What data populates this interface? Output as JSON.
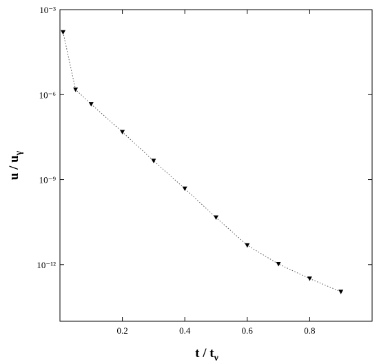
{
  "chart_data": {
    "type": "line",
    "xlabel": {
      "text": "t / t",
      "sub": "ν"
    },
    "ylabel": {
      "text": "u / u",
      "sub": "γ"
    },
    "x": [
      0.01,
      0.05,
      0.1,
      0.2,
      0.3,
      0.4,
      0.5,
      0.6,
      0.7,
      0.8,
      0.9
    ],
    "series": [
      {
        "color": "#000000",
        "values": [
          0.00016,
          1.5e-06,
          4.6e-07,
          4.8e-08,
          4.6e-09,
          4.8e-10,
          4.6e-11,
          4.8e-12,
          1.05e-12,
          3.2e-13,
          1.1e-13
        ]
      }
    ],
    "xlim": [
      0,
      1
    ],
    "ylim": [
      1e-14,
      0.001
    ],
    "ylog": true,
    "xticks": [
      0.2,
      0.4,
      0.6,
      0.8
    ],
    "yticks": [
      {
        "value": 0.001,
        "label": "10⁻³"
      },
      {
        "value": 1e-06,
        "label": "10⁻⁶"
      },
      {
        "value": 1e-09,
        "label": "10⁻⁹"
      },
      {
        "value": 1e-12,
        "label": "10⁻¹²"
      }
    ]
  }
}
